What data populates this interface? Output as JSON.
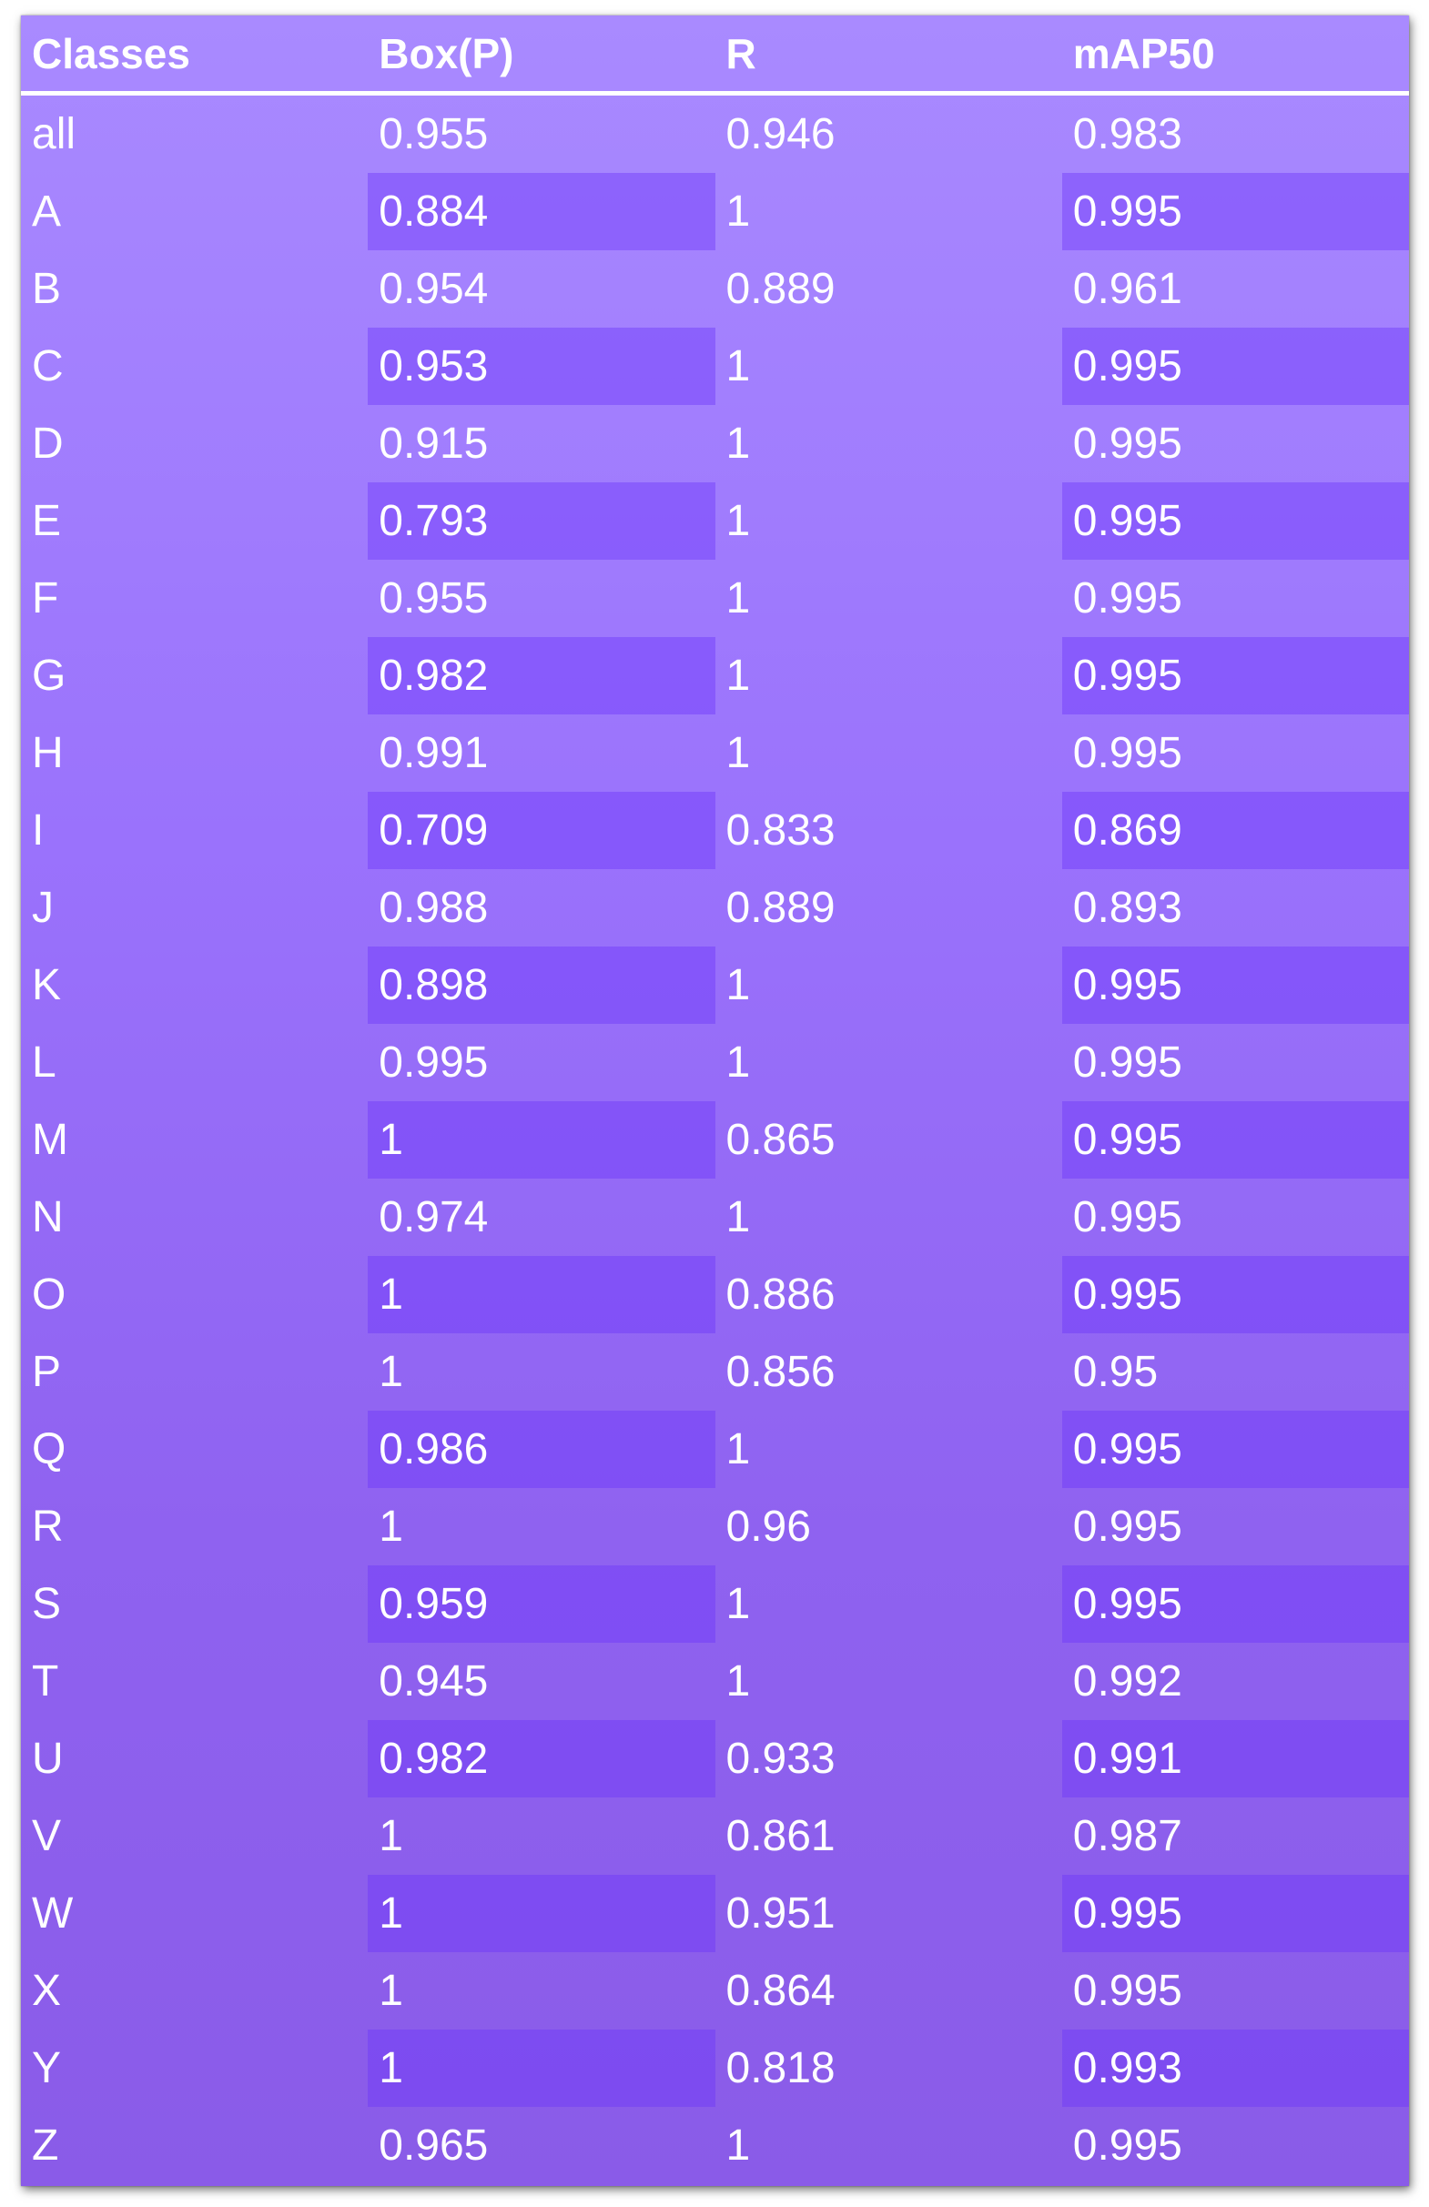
{
  "table": {
    "headers": [
      "Classes",
      "Box(P)",
      "R",
      "mAP50"
    ],
    "rows": [
      [
        "all",
        "0.955",
        "0.946",
        "0.983"
      ],
      [
        "A",
        "0.884",
        "1",
        "0.995"
      ],
      [
        "B",
        "0.954",
        "0.889",
        "0.961"
      ],
      [
        "C",
        "0.953",
        "1",
        "0.995"
      ],
      [
        "D",
        "0.915",
        "1",
        "0.995"
      ],
      [
        "E",
        "0.793",
        "1",
        "0.995"
      ],
      [
        "F",
        "0.955",
        "1",
        "0.995"
      ],
      [
        "G",
        "0.982",
        "1",
        "0.995"
      ],
      [
        "H",
        "0.991",
        "1",
        "0.995"
      ],
      [
        "I",
        "0.709",
        "0.833",
        "0.869"
      ],
      [
        "J",
        "0.988",
        "0.889",
        "0.893"
      ],
      [
        "K",
        "0.898",
        "1",
        "0.995"
      ],
      [
        "L",
        "0.995",
        "1",
        "0.995"
      ],
      [
        "M",
        "1",
        "0.865",
        "0.995"
      ],
      [
        "N",
        "0.974",
        "1",
        "0.995"
      ],
      [
        "O",
        "1",
        "0.886",
        "0.995"
      ],
      [
        "P",
        "1",
        "0.856",
        "0.95"
      ],
      [
        "Q",
        "0.986",
        "1",
        "0.995"
      ],
      [
        "R",
        "1",
        "0.96",
        "0.995"
      ],
      [
        "S",
        "0.959",
        "1",
        "0.995"
      ],
      [
        "T",
        "0.945",
        "1",
        "0.992"
      ],
      [
        "U",
        "0.982",
        "0.933",
        "0.991"
      ],
      [
        "V",
        "1",
        "0.861",
        "0.987"
      ],
      [
        "W",
        "1",
        "0.951",
        "0.995"
      ],
      [
        "X",
        "1",
        "0.864",
        "0.995"
      ],
      [
        "Y",
        "1",
        "0.818",
        "0.993"
      ],
      [
        "Z",
        "0.965",
        "1",
        "0.995"
      ]
    ]
  },
  "colors": {
    "background_top": "#a98aff",
    "background_bottom": "#8a5be8",
    "highlight": "#6c34fa",
    "text": "#ffffff"
  }
}
